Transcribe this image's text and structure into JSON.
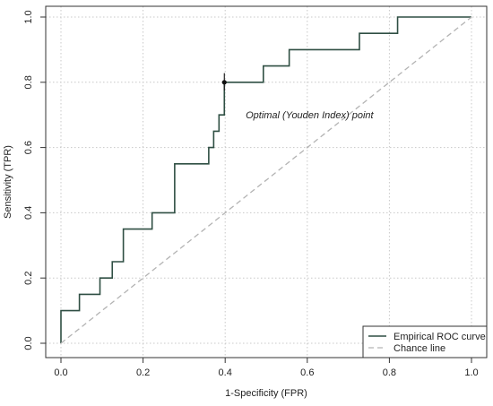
{
  "chart_data": {
    "type": "line",
    "xlabel": "1-Specificity (FPR)",
    "ylabel": "Sensitivity (TPR)",
    "xlim": [
      0,
      1
    ],
    "ylim": [
      0,
      1
    ],
    "xticks": [
      "0.0",
      "0.2",
      "0.4",
      "0.6",
      "0.8",
      "1.0"
    ],
    "yticks": [
      "0.0",
      "0.2",
      "0.4",
      "0.6",
      "0.8",
      "1.0"
    ],
    "grid": true,
    "legend_position": "bottom-right",
    "series": [
      {
        "name": "Empirical ROC curve",
        "style": "solid",
        "color": "#2f4f43",
        "x": [
          0,
          0,
          0.045,
          0.045,
          0.095,
          0.095,
          0.125,
          0.125,
          0.152,
          0.152,
          0.222,
          0.222,
          0.277,
          0.277,
          0.36,
          0.36,
          0.372,
          0.372,
          0.385,
          0.385,
          0.398,
          0.398,
          0.493,
          0.493,
          0.556,
          0.556,
          0.727,
          0.727,
          0.82,
          0.82,
          1.0
        ],
        "y": [
          0,
          0.1,
          0.1,
          0.15,
          0.15,
          0.2,
          0.2,
          0.25,
          0.25,
          0.35,
          0.35,
          0.4,
          0.4,
          0.55,
          0.55,
          0.6,
          0.6,
          0.65,
          0.65,
          0.7,
          0.7,
          0.8,
          0.8,
          0.85,
          0.85,
          0.9,
          0.9,
          0.95,
          0.95,
          1.0,
          1.0
        ]
      },
      {
        "name": "Chance line",
        "style": "dashed",
        "color": "#b3b3b3",
        "x": [
          0,
          1
        ],
        "y": [
          0,
          1
        ]
      }
    ],
    "optimal_point": {
      "x": 0.398,
      "y": 0.8,
      "ci_low": 0.775,
      "ci_high": 0.828
    },
    "annotations": [
      {
        "text": "Optimal (Youden Index) point",
        "x": 0.45,
        "y": 0.7
      }
    ]
  }
}
